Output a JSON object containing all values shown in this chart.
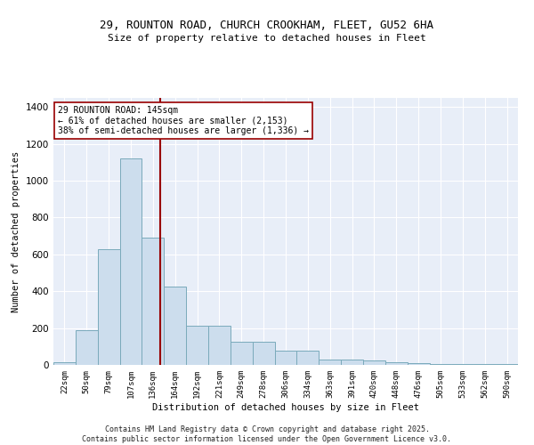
{
  "title_line1": "29, ROUNTON ROAD, CHURCH CROOKHAM, FLEET, GU52 6HA",
  "title_line2": "Size of property relative to detached houses in Fleet",
  "xlabel": "Distribution of detached houses by size in Fleet",
  "ylabel": "Number of detached properties",
  "bar_color": "#ccdded",
  "bar_edge_color": "#7aaabb",
  "plot_bg_color": "#e8eef8",
  "grid_color": "#ffffff",
  "categories": [
    "22sqm",
    "50sqm",
    "79sqm",
    "107sqm",
    "136sqm",
    "164sqm",
    "192sqm",
    "221sqm",
    "249sqm",
    "278sqm",
    "306sqm",
    "334sqm",
    "363sqm",
    "391sqm",
    "420sqm",
    "448sqm",
    "476sqm",
    "505sqm",
    "533sqm",
    "562sqm",
    "590sqm"
  ],
  "values": [
    15,
    190,
    630,
    1120,
    690,
    425,
    215,
    215,
    125,
    125,
    75,
    75,
    28,
    28,
    22,
    15,
    10,
    5,
    5,
    5,
    5
  ],
  "vline_color": "#990000",
  "vline_pos": 4.32,
  "annotation_text": "29 ROUNTON ROAD: 145sqm\n← 61% of detached houses are smaller (2,153)\n38% of semi-detached houses are larger (1,336) →",
  "annotation_box_facecolor": "#ffffff",
  "annotation_box_edgecolor": "#990000",
  "ylim": [
    0,
    1450
  ],
  "yticks": [
    0,
    200,
    400,
    600,
    800,
    1000,
    1200,
    1400
  ],
  "footnote": "Contains HM Land Registry data © Crown copyright and database right 2025.\nContains public sector information licensed under the Open Government Licence v3.0.",
  "fig_bg_color": "#ffffff"
}
